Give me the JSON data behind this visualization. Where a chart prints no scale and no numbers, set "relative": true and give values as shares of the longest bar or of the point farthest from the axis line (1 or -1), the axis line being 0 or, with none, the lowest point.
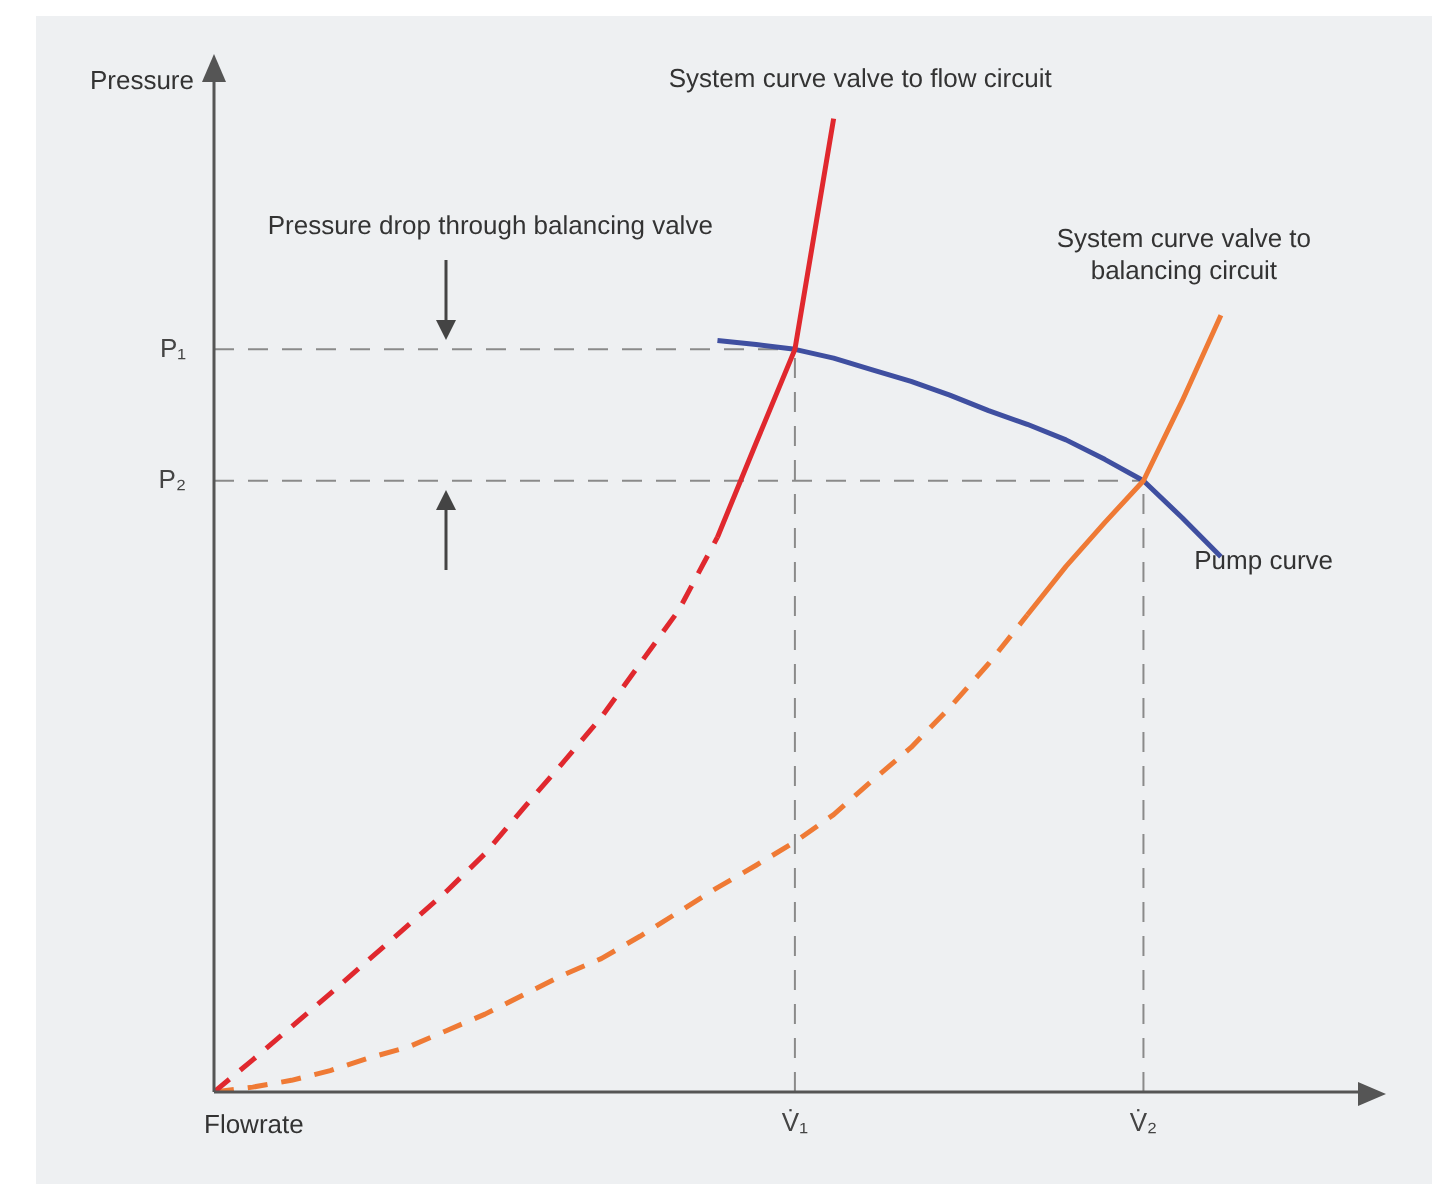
{
  "chart_data": {
    "type": "line",
    "xlabel": "Flowrate",
    "ylabel": "Pressure",
    "relative": true,
    "categories": [
      null,
      null,
      null,
      null,
      null,
      null,
      null,
      null,
      null,
      null,
      null,
      null,
      null,
      null,
      null,
      "V̇₁",
      null,
      null,
      null,
      null,
      null,
      null,
      null,
      null,
      "V̇₂",
      null,
      null,
      null,
      null,
      null
    ],
    "grid": false,
    "legend": false,
    "marker": "none",
    "series": [
      {
        "color": "#e0282e",
        "line_style": "dashed",
        "values": [
          0,
          0.033,
          0.067,
          0.101,
          0.136,
          0.171,
          0.206,
          0.245,
          0.292,
          0.338,
          0.385,
          0.44,
          0.495,
          0.57,
          null,
          null,
          null,
          null,
          null,
          null,
          null,
          null,
          null,
          null,
          null,
          null,
          null,
          null,
          null,
          null
        ]
      },
      {
        "color": "#e0282e",
        "line_style": "solid",
        "values": [
          null,
          null,
          null,
          null,
          null,
          null,
          null,
          null,
          null,
          null,
          null,
          null,
          null,
          0.57,
          0.667,
          0.763,
          1,
          null,
          null,
          null,
          null,
          null,
          null,
          null,
          null,
          null,
          null,
          null,
          null,
          null
        ]
      },
      {
        "color": "#ef7a35",
        "line_style": "dashed",
        "values": [
          0,
          0.005,
          0.012,
          0.022,
          0.035,
          0.046,
          0.063,
          0.08,
          0.1,
          0.12,
          0.137,
          0.16,
          0.185,
          0.21,
          0.233,
          0.257,
          0.285,
          0.32,
          0.354,
          0.395,
          0.44,
          0.49,
          null,
          null,
          null,
          null,
          null,
          null,
          null,
          null
        ]
      },
      {
        "color": "#ef7a35",
        "line_style": "solid",
        "values": [
          null,
          null,
          null,
          null,
          null,
          null,
          null,
          null,
          null,
          null,
          null,
          null,
          null,
          null,
          null,
          null,
          null,
          null,
          null,
          null,
          null,
          0.49,
          0.54,
          0.585,
          0.628,
          0.71,
          0.798,
          null,
          null,
          null
        ]
      },
      {
        "color": "#3f4fa0",
        "line_style": "solid",
        "values": [
          null,
          null,
          null,
          null,
          null,
          null,
          null,
          null,
          null,
          null,
          null,
          null,
          null,
          0.772,
          0.768,
          0.763,
          0.754,
          0.742,
          0.73,
          0.716,
          0.7,
          0.686,
          0.67,
          0.65,
          0.628,
          0.59,
          0.55,
          null,
          null,
          null
        ]
      }
    ],
    "ref_lines": [
      {
        "axis": "y",
        "value": 0.763,
        "label": "P₁",
        "color": "#8a8a8a",
        "line_style": "dashed"
      },
      {
        "axis": "y",
        "value": 0.628,
        "label": "P₂",
        "color": "#8a8a8a",
        "line_style": "dashed"
      },
      {
        "axis": "x",
        "value": "V̇₁",
        "color": "#8a8a8a",
        "line_style": "dashed"
      },
      {
        "axis": "x",
        "value": "V̇₂",
        "color": "#8a8a8a",
        "line_style": "dashed"
      }
    ],
    "annotations": [
      "System curve valve to flow circuit",
      "System curve valve to balancing circuit",
      "Pump curve",
      "Pressure drop through balancing valve"
    ]
  }
}
